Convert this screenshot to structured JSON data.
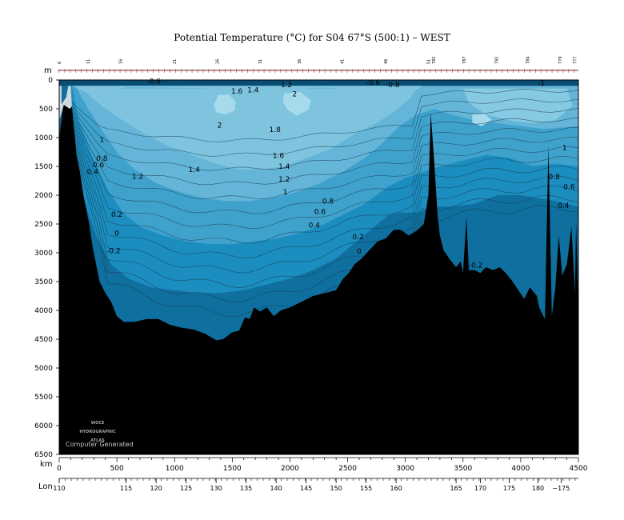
{
  "chart_data": {
    "type": "area",
    "title": "Potential Temperature (°C) for S04 67°S (500:1) – WEST",
    "xlabel": "km",
    "ylabel": "m",
    "lon_label": "Lon",
    "xlim": [
      0,
      4500
    ],
    "ylim": [
      6500,
      0
    ],
    "x_ticks": [
      0,
      500,
      1000,
      1500,
      2000,
      2500,
      3000,
      3500,
      4000,
      4500
    ],
    "y_ticks": [
      0,
      500,
      1000,
      1500,
      2000,
      2500,
      3000,
      3500,
      4000,
      4500,
      5000,
      5500,
      6000,
      6500
    ],
    "lon_ticks": [
      {
        "km": 0,
        "label": "110"
      },
      {
        "km": 580,
        "label": "115"
      },
      {
        "km": 840,
        "label": "120"
      },
      {
        "km": 1100,
        "label": "125"
      },
      {
        "km": 1360,
        "label": "130"
      },
      {
        "km": 1620,
        "label": "135"
      },
      {
        "km": 1880,
        "label": "140"
      },
      {
        "km": 2140,
        "label": "145"
      },
      {
        "km": 2400,
        "label": "150"
      },
      {
        "km": 2660,
        "label": "155"
      },
      {
        "km": 2920,
        "label": "160"
      },
      {
        "km": 3440,
        "label": "165"
      },
      {
        "km": 3650,
        "label": "170"
      },
      {
        "km": 3900,
        "label": "175"
      },
      {
        "km": 4150,
        "label": "180"
      },
      {
        "km": 4350,
        "label": "−175"
      }
    ],
    "station_labels": [
      {
        "km": 0,
        "label": "6"
      },
      {
        "km": 250,
        "label": "11"
      },
      {
        "km": 530,
        "label": "16"
      },
      {
        "km": 1000,
        "label": "21"
      },
      {
        "km": 1370,
        "label": "26"
      },
      {
        "km": 1740,
        "label": "31"
      },
      {
        "km": 2080,
        "label": "36"
      },
      {
        "km": 2450,
        "label": "41"
      },
      {
        "km": 2830,
        "label": "46"
      },
      {
        "km": 3200,
        "label": "51"
      },
      {
        "km": 3245,
        "label": "782"
      },
      {
        "km": 3510,
        "label": "787"
      },
      {
        "km": 3790,
        "label": "792"
      },
      {
        "km": 4060,
        "label": "784"
      },
      {
        "km": 4340,
        "label": "779"
      },
      {
        "km": 4470,
        "label": "777"
      }
    ],
    "contour_levels": [
      -0.2,
      0,
      0.2,
      0.4,
      0.6,
      0.8,
      1,
      1.2,
      1.4,
      1.6,
      1.8,
      2
    ],
    "contour_labels": [
      {
        "x": 370,
        "y": 1040,
        "text": "1"
      },
      {
        "x": 370,
        "y": 1370,
        "text": "0.8"
      },
      {
        "x": 340,
        "y": 1480,
        "text": "0.6"
      },
      {
        "x": 290,
        "y": 1600,
        "text": "0.4"
      },
      {
        "x": 680,
        "y": 1680,
        "text": "1.2"
      },
      {
        "x": 1170,
        "y": 1560,
        "text": "1.4"
      },
      {
        "x": 1390,
        "y": 790,
        "text": "2"
      },
      {
        "x": 1870,
        "y": 870,
        "text": "1.8"
      },
      {
        "x": 1900,
        "y": 1320,
        "text": "1.6"
      },
      {
        "x": 1950,
        "y": 1510,
        "text": "1.4"
      },
      {
        "x": 1950,
        "y": 1730,
        "text": "1.2"
      },
      {
        "x": 1960,
        "y": 1950,
        "text": "1"
      },
      {
        "x": 2330,
        "y": 2110,
        "text": "0.8"
      },
      {
        "x": 2260,
        "y": 2290,
        "text": "0.6"
      },
      {
        "x": 2210,
        "y": 2530,
        "text": "0.4"
      },
      {
        "x": 2590,
        "y": 2730,
        "text": "0.2"
      },
      {
        "x": 2600,
        "y": 2980,
        "text": "0"
      },
      {
        "x": 2560,
        "y": 3580,
        "text": "-0.2"
      },
      {
        "x": 500,
        "y": 2340,
        "text": "0.2"
      },
      {
        "x": 500,
        "y": 2670,
        "text": "0"
      },
      {
        "x": 470,
        "y": 2970,
        "text": "-0.2"
      },
      {
        "x": 3610,
        "y": 3220,
        "text": "-0.2"
      },
      {
        "x": 4380,
        "y": 1180,
        "text": "1"
      },
      {
        "x": 4290,
        "y": 1690,
        "text": "0.8"
      },
      {
        "x": 4420,
        "y": 1860,
        "text": "0.6"
      },
      {
        "x": 4370,
        "y": 2190,
        "text": "0.4"
      },
      {
        "x": 1540,
        "y": 200,
        "text": "1.6"
      },
      {
        "x": 1680,
        "y": 180,
        "text": "1.4"
      },
      {
        "x": 1970,
        "y": 90,
        "text": "1.2"
      },
      {
        "x": 2040,
        "y": 250,
        "text": "2"
      },
      {
        "x": 2720,
        "y": 50,
        "text": "-0.6"
      },
      {
        "x": 2890,
        "y": 90,
        "text": "-0.8"
      },
      {
        "x": 820,
        "y": 30,
        "text": "-0.6"
      },
      {
        "x": 4180,
        "y": 60,
        "text": "-1"
      }
    ],
    "watermark": [
      "WOCE",
      "HYDROGRAPHIC",
      "ATLAS"
    ],
    "watermark_caption": "Computer Generated",
    "colors": {
      "band_warm": "#7ec4df",
      "band_mid1": "#64b5d8",
      "band_mid2": "#3fa2cc",
      "band_cold": "#1b8dbf",
      "band_coldest": "#0f6f9f",
      "surface": "#0a4d73",
      "bottom": "#000000",
      "station_marker": "#d04040"
    }
  }
}
